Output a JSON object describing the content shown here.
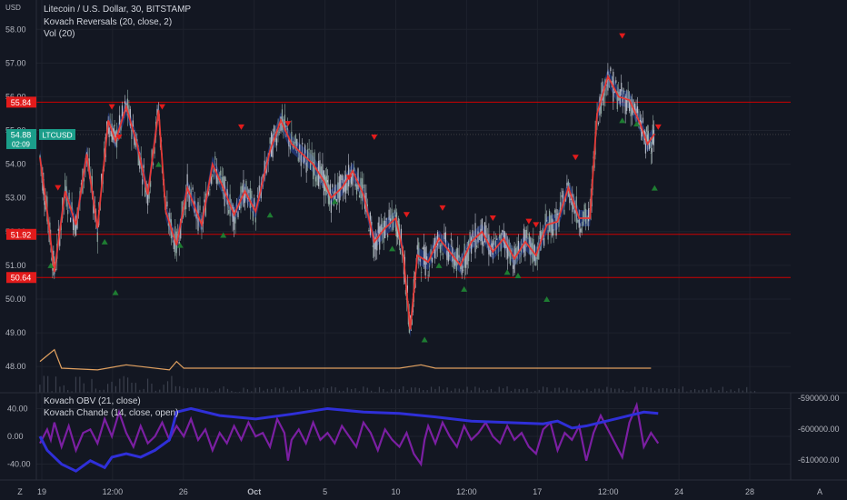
{
  "header": {
    "currency": "USD",
    "legend_lines": [
      "Litecoin / U.S. Dollar, 30, BITSTAMP",
      "Kovach Reversals (20, close, 2)",
      "Vol (20)"
    ]
  },
  "lower_pane": {
    "legend_lines": [
      "Kovach OBV (21, close)",
      "Kovach Chande (14, close, open)"
    ]
  },
  "price_label": {
    "symbol": "LTCUSD",
    "price": "54.88",
    "countdown": "02:09"
  },
  "scale_buttons": {
    "left": "Z",
    "right": "A"
  },
  "colors": {
    "background": "#131722",
    "candle_up": "#8fa8a0",
    "candle_down": "#b8bdc8",
    "reversal_line": "#e53935",
    "band": "#2b4aa8",
    "hline": "#d00000",
    "tag_bg": "#e21b1b",
    "price_tag_bg": "#1b9e8a",
    "marker_up": "#1e7d32",
    "marker_down": "#e21b1b",
    "volume_line": "#e0a060",
    "obv": "#2f2fd8",
    "chande": "#7b1fa2"
  },
  "chart_data": [
    {
      "type": "candlestick",
      "title": "Litecoin / U.S. Dollar, 30, BITSTAMP",
      "ylim": [
        47.6,
        58.6
      ],
      "y_ticks": [
        "58.00",
        "57.00",
        "56.00",
        "55.00",
        "54.00",
        "53.00",
        "52.00",
        "51.00",
        "50.00",
        "49.00",
        "48.00"
      ],
      "x_ticks": [
        "19",
        "12:00",
        "26",
        "Oct",
        "5",
        "10",
        "12:00",
        "17",
        "12:00",
        "24",
        "28"
      ],
      "horizontal_levels": [
        55.84,
        51.92,
        50.64
      ],
      "level_tags": [
        "55.84",
        "51.92",
        "50.64"
      ],
      "price_path": [
        [
          0,
          54.2
        ],
        [
          0.01,
          52.6
        ],
        [
          0.02,
          50.8
        ],
        [
          0.035,
          53.2
        ],
        [
          0.05,
          52.2
        ],
        [
          0.065,
          54.3
        ],
        [
          0.08,
          52.1
        ],
        [
          0.095,
          55.3
        ],
        [
          0.105,
          54.7
        ],
        [
          0.12,
          55.7
        ],
        [
          0.135,
          54.6
        ],
        [
          0.15,
          53.1
        ],
        [
          0.165,
          55.6
        ],
        [
          0.175,
          52.6
        ],
        [
          0.19,
          51.6
        ],
        [
          0.205,
          53.3
        ],
        [
          0.225,
          52.2
        ],
        [
          0.24,
          54.0
        ],
        [
          0.255,
          53.3
        ],
        [
          0.27,
          52.5
        ],
        [
          0.285,
          53.2
        ],
        [
          0.3,
          52.6
        ],
        [
          0.32,
          54.4
        ],
        [
          0.335,
          55.3
        ],
        [
          0.35,
          54.6
        ],
        [
          0.365,
          54.3
        ],
        [
          0.38,
          54.0
        ],
        [
          0.395,
          53.5
        ],
        [
          0.405,
          53.0
        ],
        [
          0.42,
          53.3
        ],
        [
          0.435,
          53.8
        ],
        [
          0.45,
          53.1
        ],
        [
          0.465,
          51.7
        ],
        [
          0.48,
          52.1
        ],
        [
          0.495,
          52.4
        ],
        [
          0.505,
          51.4
        ],
        [
          0.515,
          49.1
        ],
        [
          0.525,
          51.3
        ],
        [
          0.54,
          51.1
        ],
        [
          0.555,
          51.8
        ],
        [
          0.57,
          51.4
        ],
        [
          0.585,
          51.0
        ],
        [
          0.6,
          51.7
        ],
        [
          0.615,
          52.0
        ],
        [
          0.63,
          51.4
        ],
        [
          0.645,
          51.8
        ],
        [
          0.66,
          51.2
        ],
        [
          0.675,
          51.7
        ],
        [
          0.69,
          51.3
        ],
        [
          0.705,
          52.2
        ],
        [
          0.72,
          52.3
        ],
        [
          0.735,
          53.3
        ],
        [
          0.75,
          52.4
        ],
        [
          0.765,
          52.4
        ],
        [
          0.775,
          55.5
        ],
        [
          0.79,
          56.6
        ],
        [
          0.805,
          56.0
        ],
        [
          0.82,
          55.9
        ],
        [
          0.835,
          55.2
        ],
        [
          0.845,
          54.6
        ],
        [
          0.855,
          54.9
        ]
      ],
      "reversal_markers_down": [
        [
          0.025,
          53.3
        ],
        [
          0.1,
          55.7
        ],
        [
          0.11,
          54.8
        ],
        [
          0.17,
          55.7
        ],
        [
          0.28,
          55.1
        ],
        [
          0.345,
          55.2
        ],
        [
          0.43,
          53.6
        ],
        [
          0.465,
          54.8
        ],
        [
          0.51,
          52.5
        ],
        [
          0.56,
          52.7
        ],
        [
          0.63,
          52.4
        ],
        [
          0.68,
          52.3
        ],
        [
          0.69,
          52.2
        ],
        [
          0.745,
          54.2
        ],
        [
          0.81,
          57.8
        ],
        [
          0.86,
          55.1
        ]
      ],
      "reversal_markers_up": [
        [
          0.015,
          51.0
        ],
        [
          0.09,
          51.7
        ],
        [
          0.105,
          50.2
        ],
        [
          0.165,
          54.0
        ],
        [
          0.195,
          51.6
        ],
        [
          0.255,
          51.9
        ],
        [
          0.32,
          52.5
        ],
        [
          0.41,
          52.9
        ],
        [
          0.49,
          51.5
        ],
        [
          0.535,
          48.8
        ],
        [
          0.555,
          51.0
        ],
        [
          0.59,
          50.3
        ],
        [
          0.65,
          50.8
        ],
        [
          0.665,
          50.7
        ],
        [
          0.705,
          50.0
        ],
        [
          0.81,
          55.3
        ],
        [
          0.83,
          55.2
        ],
        [
          0.855,
          53.3
        ]
      ],
      "volume_label": "Vol (20)",
      "volume_path": [
        [
          0,
          48.15
        ],
        [
          0.02,
          48.5
        ],
        [
          0.03,
          47.95
        ],
        [
          0.08,
          47.9
        ],
        [
          0.12,
          48.05
        ],
        [
          0.18,
          47.9
        ],
        [
          0.19,
          48.15
        ],
        [
          0.2,
          47.95
        ],
        [
          0.3,
          47.95
        ],
        [
          0.5,
          47.95
        ],
        [
          0.53,
          48.05
        ],
        [
          0.55,
          47.95
        ],
        [
          0.78,
          47.95
        ],
        [
          0.85,
          47.95
        ]
      ]
    },
    {
      "type": "line",
      "title": "Kovach OBV (21, close) / Kovach Chande (14, close, open)",
      "left_ylim": [
        -55,
        55
      ],
      "left_ticks": [
        "40.00",
        "0.00",
        "-40.00"
      ],
      "right_ticks": [
        "-590000.00",
        "-600000.00",
        "-610000.00"
      ],
      "series": [
        {
          "name": "Kovach OBV (21, close)",
          "values": [
            [
              0,
              0
            ],
            [
              0.01,
              -20
            ],
            [
              0.03,
              -40
            ],
            [
              0.05,
              -50
            ],
            [
              0.07,
              -35
            ],
            [
              0.09,
              -45
            ],
            [
              0.1,
              -30
            ],
            [
              0.12,
              -25
            ],
            [
              0.14,
              -30
            ],
            [
              0.16,
              -20
            ],
            [
              0.18,
              -5
            ],
            [
              0.19,
              35
            ],
            [
              0.21,
              40
            ],
            [
              0.25,
              30
            ],
            [
              0.3,
              25
            ],
            [
              0.35,
              32
            ],
            [
              0.4,
              40
            ],
            [
              0.45,
              35
            ],
            [
              0.5,
              33
            ],
            [
              0.55,
              28
            ],
            [
              0.6,
              22
            ],
            [
              0.65,
              20
            ],
            [
              0.7,
              18
            ],
            [
              0.72,
              22
            ],
            [
              0.74,
              12
            ],
            [
              0.76,
              15
            ],
            [
              0.78,
              20
            ],
            [
              0.8,
              25
            ],
            [
              0.82,
              30
            ],
            [
              0.84,
              35
            ],
            [
              0.86,
              33
            ]
          ]
        },
        {
          "name": "Kovach Chande (14, close, open)",
          "values": [
            [
              0,
              -10
            ],
            [
              0.01,
              10
            ],
            [
              0.015,
              -5
            ],
            [
              0.02,
              20
            ],
            [
              0.03,
              -15
            ],
            [
              0.04,
              15
            ],
            [
              0.05,
              -20
            ],
            [
              0.06,
              5
            ],
            [
              0.07,
              10
            ],
            [
              0.08,
              -10
            ],
            [
              0.09,
              25
            ],
            [
              0.1,
              0
            ],
            [
              0.11,
              35
            ],
            [
              0.12,
              5
            ],
            [
              0.13,
              -15
            ],
            [
              0.14,
              15
            ],
            [
              0.15,
              -10
            ],
            [
              0.16,
              0
            ],
            [
              0.17,
              20
            ],
            [
              0.18,
              -5
            ],
            [
              0.19,
              15
            ],
            [
              0.2,
              0
            ],
            [
              0.21,
              25
            ],
            [
              0.22,
              -5
            ],
            [
              0.23,
              10
            ],
            [
              0.24,
              -20
            ],
            [
              0.25,
              5
            ],
            [
              0.26,
              -10
            ],
            [
              0.27,
              15
            ],
            [
              0.28,
              -5
            ],
            [
              0.29,
              20
            ],
            [
              0.3,
              0
            ],
            [
              0.31,
              5
            ],
            [
              0.32,
              -15
            ],
            [
              0.33,
              25
            ],
            [
              0.34,
              5
            ],
            [
              0.345,
              -35
            ],
            [
              0.35,
              -5
            ],
            [
              0.36,
              10
            ],
            [
              0.37,
              -10
            ],
            [
              0.38,
              20
            ],
            [
              0.39,
              -5
            ],
            [
              0.4,
              5
            ],
            [
              0.41,
              -10
            ],
            [
              0.42,
              15
            ],
            [
              0.43,
              0
            ],
            [
              0.44,
              -15
            ],
            [
              0.45,
              20
            ],
            [
              0.46,
              5
            ],
            [
              0.47,
              -20
            ],
            [
              0.48,
              10
            ],
            [
              0.49,
              -5
            ],
            [
              0.5,
              -15
            ],
            [
              0.51,
              5
            ],
            [
              0.52,
              -25
            ],
            [
              0.53,
              -40
            ],
            [
              0.535,
              -5
            ],
            [
              0.54,
              15
            ],
            [
              0.55,
              -10
            ],
            [
              0.56,
              20
            ],
            [
              0.57,
              0
            ],
            [
              0.58,
              -15
            ],
            [
              0.59,
              15
            ],
            [
              0.6,
              -5
            ],
            [
              0.61,
              5
            ],
            [
              0.62,
              20
            ],
            [
              0.63,
              0
            ],
            [
              0.64,
              -10
            ],
            [
              0.65,
              15
            ],
            [
              0.66,
              -5
            ],
            [
              0.67,
              5
            ],
            [
              0.68,
              -15
            ],
            [
              0.69,
              -25
            ],
            [
              0.7,
              10
            ],
            [
              0.71,
              20
            ],
            [
              0.72,
              -20
            ],
            [
              0.73,
              5
            ],
            [
              0.74,
              -5
            ],
            [
              0.75,
              15
            ],
            [
              0.76,
              -35
            ],
            [
              0.77,
              5
            ],
            [
              0.78,
              30
            ],
            [
              0.79,
              10
            ],
            [
              0.8,
              -10
            ],
            [
              0.81,
              -30
            ],
            [
              0.82,
              20
            ],
            [
              0.83,
              45
            ],
            [
              0.84,
              -15
            ],
            [
              0.85,
              5
            ],
            [
              0.86,
              -10
            ]
          ]
        }
      ]
    }
  ]
}
